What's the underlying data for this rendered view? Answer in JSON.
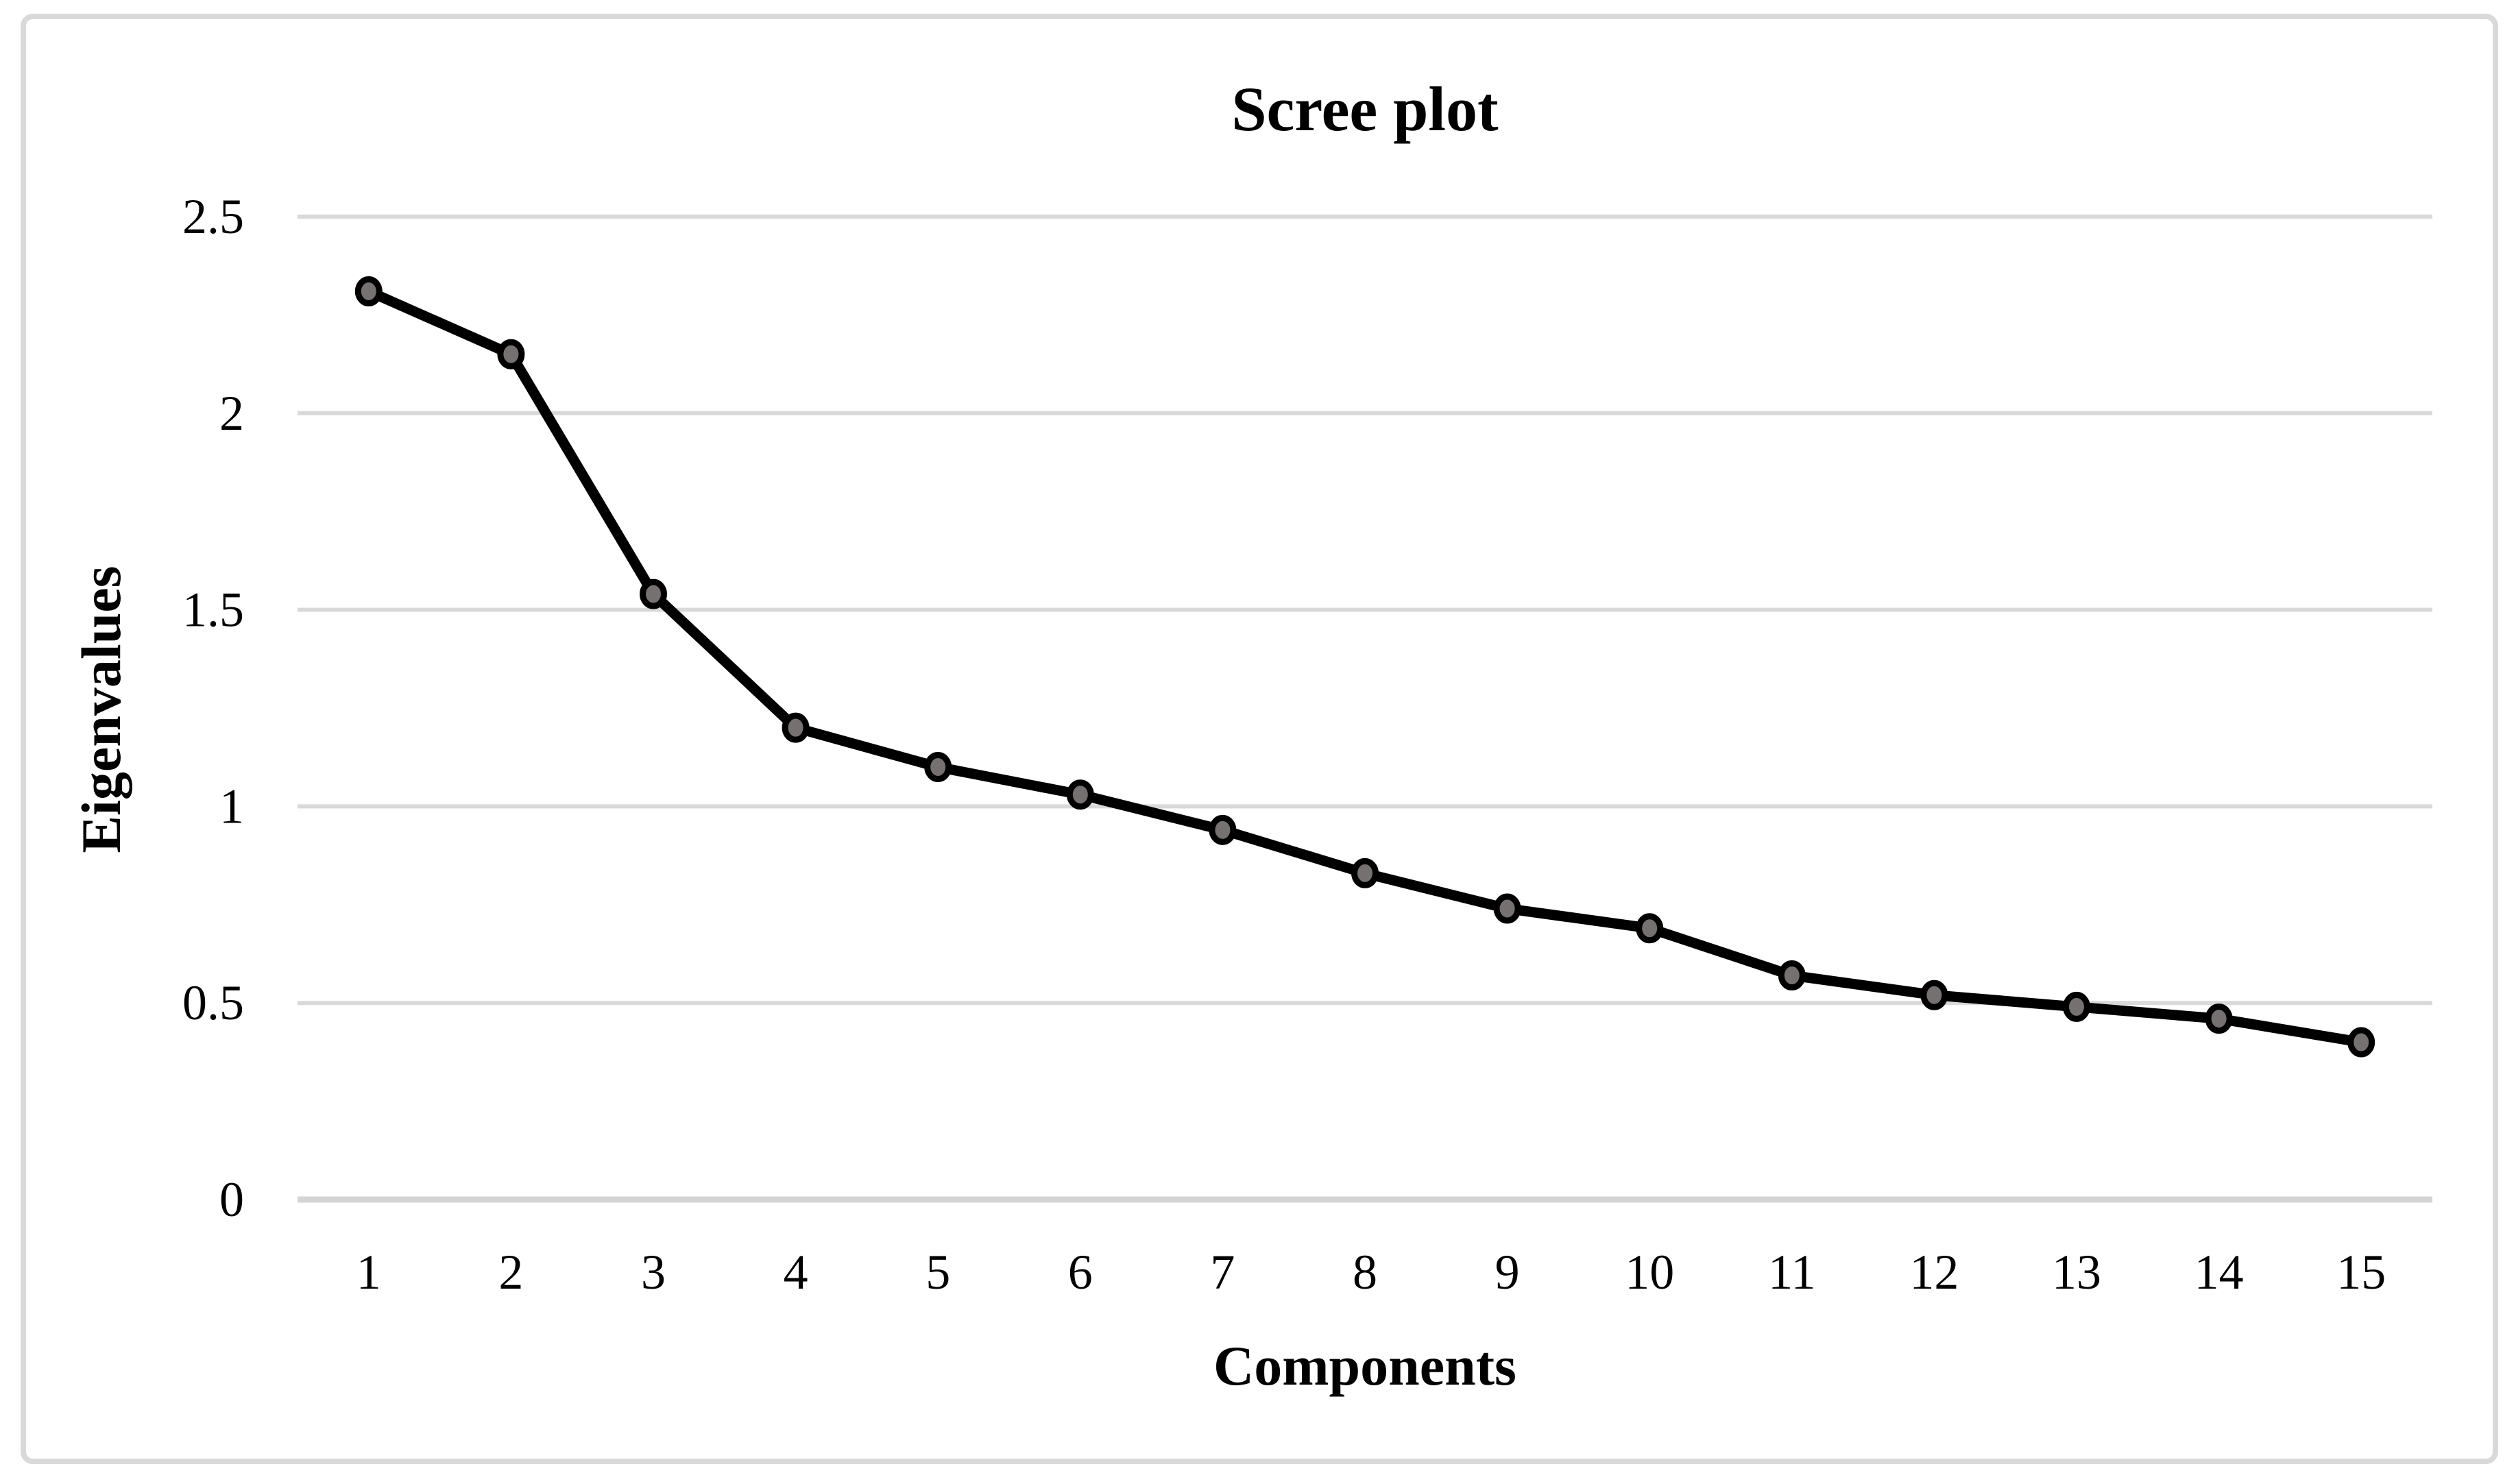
{
  "chart_data": {
    "type": "line",
    "title": "Scree plot",
    "xlabel": "Components",
    "ylabel": "Eigenvalues",
    "categories": [
      1,
      2,
      3,
      4,
      5,
      6,
      7,
      8,
      9,
      10,
      11,
      12,
      13,
      14,
      15
    ],
    "series": [
      {
        "name": "Eigenvalues",
        "values": [
          2.31,
          2.15,
          1.54,
          1.2,
          1.1,
          1.03,
          0.94,
          0.83,
          0.74,
          0.69,
          0.57,
          0.52,
          0.49,
          0.46,
          0.4
        ]
      }
    ],
    "ylim": [
      0,
      2.5
    ],
    "ytick_labels": [
      "0",
      "0.5",
      "1",
      "1.5",
      "2",
      "2.5"
    ],
    "grid": true,
    "legend": false,
    "marker": "circle",
    "colors": {
      "line": "#000000",
      "marker_fill": "#767171",
      "marker_stroke": "#000000",
      "gridline": "#d9d9d9",
      "axis_line": "#d4d4d4",
      "frame_border": "#d9d9d9",
      "text": "#000000",
      "background": "#ffffff"
    }
  }
}
